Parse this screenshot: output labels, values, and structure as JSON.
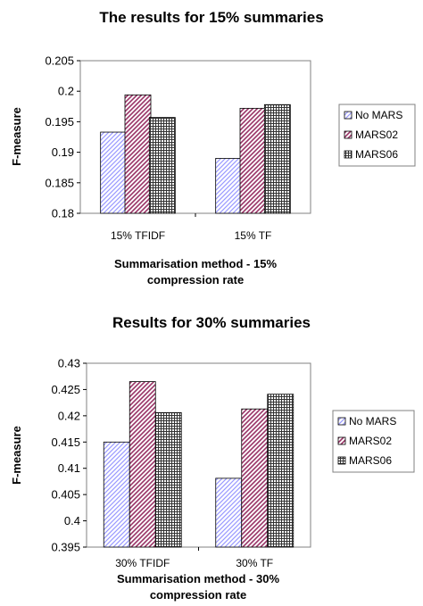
{
  "chart_data": [
    {
      "type": "bar",
      "title": "The results for 15% summaries",
      "xlabel_lines": [
        "Summarisation method - 15%",
        "compression rate"
      ],
      "ylabel": "F-measure",
      "categories": [
        "15% TFIDF",
        "15% TF"
      ],
      "series": [
        {
          "name": "No MARS",
          "values": [
            0.1933,
            0.189
          ]
        },
        {
          "name": "MARS02",
          "values": [
            0.1994,
            0.1972
          ]
        },
        {
          "name": "MARS06",
          "values": [
            0.1957,
            0.1978
          ]
        }
      ],
      "ylim": [
        0.18,
        0.205
      ],
      "yticks": [
        "0.18",
        "0.185",
        "0.19",
        "0.195",
        "0.2",
        "0.205"
      ],
      "grid": false,
      "legend": "right"
    },
    {
      "type": "bar",
      "title": "Results for 30% summaries",
      "xlabel_lines": [
        "Summarisation method - 30%",
        "compression rate"
      ],
      "ylabel": "F-measure",
      "categories": [
        "30% TFIDF",
        "30% TF"
      ],
      "series": [
        {
          "name": "No MARS",
          "values": [
            0.415,
            0.4081
          ]
        },
        {
          "name": "MARS02",
          "values": [
            0.4265,
            0.4213
          ]
        },
        {
          "name": "MARS06",
          "values": [
            0.4206,
            0.4241
          ]
        }
      ],
      "ylim": [
        0.395,
        0.43
      ],
      "yticks": [
        "0.395",
        "0.4",
        "0.405",
        "0.41",
        "0.415",
        "0.42",
        "0.425",
        "0.43"
      ],
      "grid": false,
      "legend": "right"
    }
  ],
  "colors": {
    "no_mars": "#9999ff",
    "mars02": "#993366",
    "mars06": "#333333"
  }
}
